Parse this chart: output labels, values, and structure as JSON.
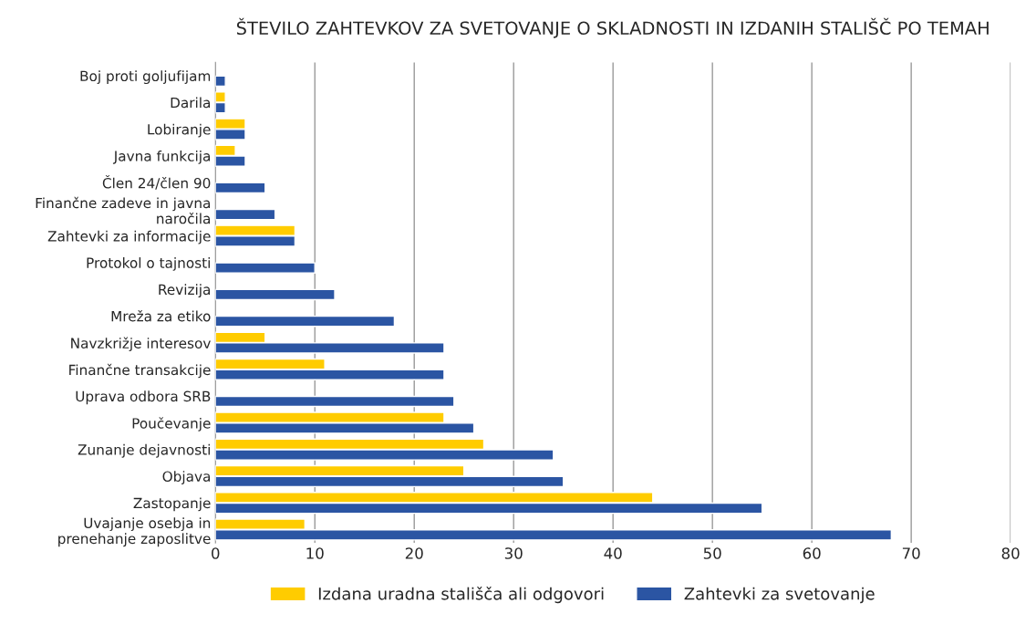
{
  "chart_data": {
    "type": "bar",
    "orientation": "horizontal",
    "title": "ŠTEVILO ZAHTEVKOV ZA SVETOVANJE O SKLADNOSTI IN IZDANIH STALIŠČ PO TEMAH",
    "categories": [
      "Boj proti goljufijam",
      "Darila",
      "Lobiranje",
      "Javna funkcija",
      "Člen 24/člen 90",
      "Finančne zadeve in javna naročila",
      "Zahtevki za informacije",
      "Protokol o tajnosti",
      "Revizija",
      "Mreža za etiko",
      "Navzkrižje interesov",
      "Finančne transakcije",
      "Uprava odbora SRB",
      "Poučevanje",
      "Zunanje dejavnosti",
      "Objava",
      "Zastopanje",
      "Uvajanje osebja in prenehanje zaposlitve"
    ],
    "series": [
      {
        "name": "Izdana uradna stališča ali odgovori",
        "color": "#ffcc00",
        "values": [
          null,
          1,
          3,
          2,
          null,
          null,
          8,
          null,
          null,
          null,
          5,
          11,
          null,
          23,
          27,
          25,
          44,
          9
        ]
      },
      {
        "name": "Zahtevki za svetovanje",
        "color": "#2b55a3",
        "values": [
          1,
          1,
          3,
          3,
          5,
          6,
          8,
          10,
          12,
          18,
          23,
          23,
          24,
          26,
          34,
          35,
          55,
          68
        ]
      }
    ],
    "xlim": [
      0,
      80
    ],
    "xticks": [
      0,
      10,
      20,
      30,
      40,
      50,
      60,
      70,
      80
    ],
    "grid": "x",
    "legend": "bottom"
  }
}
